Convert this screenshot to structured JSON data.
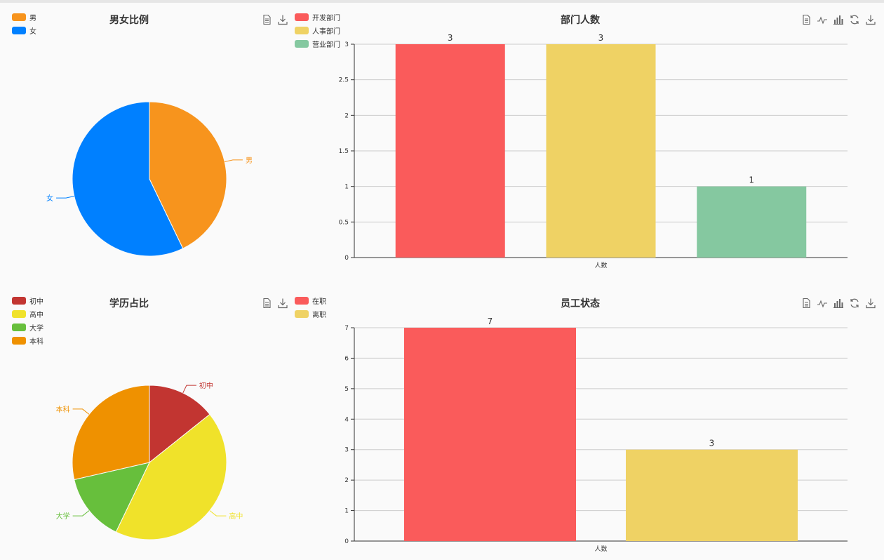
{
  "charts": [
    {
      "title": "男女比例",
      "legend": [
        {
          "name": "男",
          "color": "#f7941d"
        },
        {
          "name": "女",
          "color": "#0080ff"
        }
      ],
      "toolbox": [
        "data-view-icon",
        "save-image-icon"
      ]
    },
    {
      "title": "部门人数",
      "legend": [
        {
          "name": "开发部门",
          "color": "#fa5b5b"
        },
        {
          "name": "人事部门",
          "color": "#efd264"
        },
        {
          "name": "营业部门",
          "color": "#85c8a0"
        }
      ],
      "toolbox": [
        "data-view-icon",
        "line-chart-icon",
        "bar-chart-icon",
        "restore-icon",
        "save-image-icon"
      ]
    },
    {
      "title": "学历占比",
      "legend": [
        {
          "name": "初中",
          "color": "#c23531"
        },
        {
          "name": "高中",
          "color": "#f0e22a"
        },
        {
          "name": "大学",
          "color": "#67bf3c"
        },
        {
          "name": "本科",
          "color": "#ef9100"
        }
      ],
      "toolbox": [
        "data-view-icon",
        "save-image-icon"
      ]
    },
    {
      "title": "员工状态",
      "legend": [
        {
          "name": "在职",
          "color": "#fa5b5b"
        },
        {
          "name": "离职",
          "color": "#efd264"
        }
      ],
      "toolbox": [
        "data-view-icon",
        "line-chart-icon",
        "bar-chart-icon",
        "restore-icon",
        "save-image-icon"
      ]
    }
  ],
  "chart_data": [
    {
      "type": "pie",
      "title": "男女比例",
      "slices": [
        {
          "label": "男",
          "value": 3,
          "color": "#f7941d"
        },
        {
          "label": "女",
          "value": 4,
          "color": "#0080ff"
        }
      ]
    },
    {
      "type": "bar",
      "title": "部门人数",
      "categories": [
        "人数"
      ],
      "series": [
        {
          "name": "开发部门",
          "values": [
            3
          ],
          "color": "#fa5b5b"
        },
        {
          "name": "人事部门",
          "values": [
            3
          ],
          "color": "#efd264"
        },
        {
          "name": "营业部门",
          "values": [
            1
          ],
          "color": "#85c8a0"
        }
      ],
      "ylim": [
        0,
        3
      ],
      "yticks": [
        "0",
        "0.5",
        "1",
        "1.5",
        "2",
        "2.5",
        "3"
      ],
      "grid": true
    },
    {
      "type": "pie",
      "title": "学历占比",
      "slices": [
        {
          "label": "初中",
          "value": 1,
          "color": "#c23531"
        },
        {
          "label": "高中",
          "value": 3,
          "color": "#f0e22a"
        },
        {
          "label": "大学",
          "value": 1,
          "color": "#67bf3c"
        },
        {
          "label": "本科",
          "value": 2,
          "color": "#ef9100"
        }
      ]
    },
    {
      "type": "bar",
      "title": "员工状态",
      "categories": [
        "人数"
      ],
      "series": [
        {
          "name": "在职",
          "values": [
            7
          ],
          "color": "#fa5b5b"
        },
        {
          "name": "离职",
          "values": [
            3
          ],
          "color": "#efd264"
        }
      ],
      "ylim": [
        0,
        7
      ],
      "yticks": [
        "0",
        "1",
        "2",
        "3",
        "4",
        "5",
        "6",
        "7"
      ],
      "grid": true
    }
  ]
}
